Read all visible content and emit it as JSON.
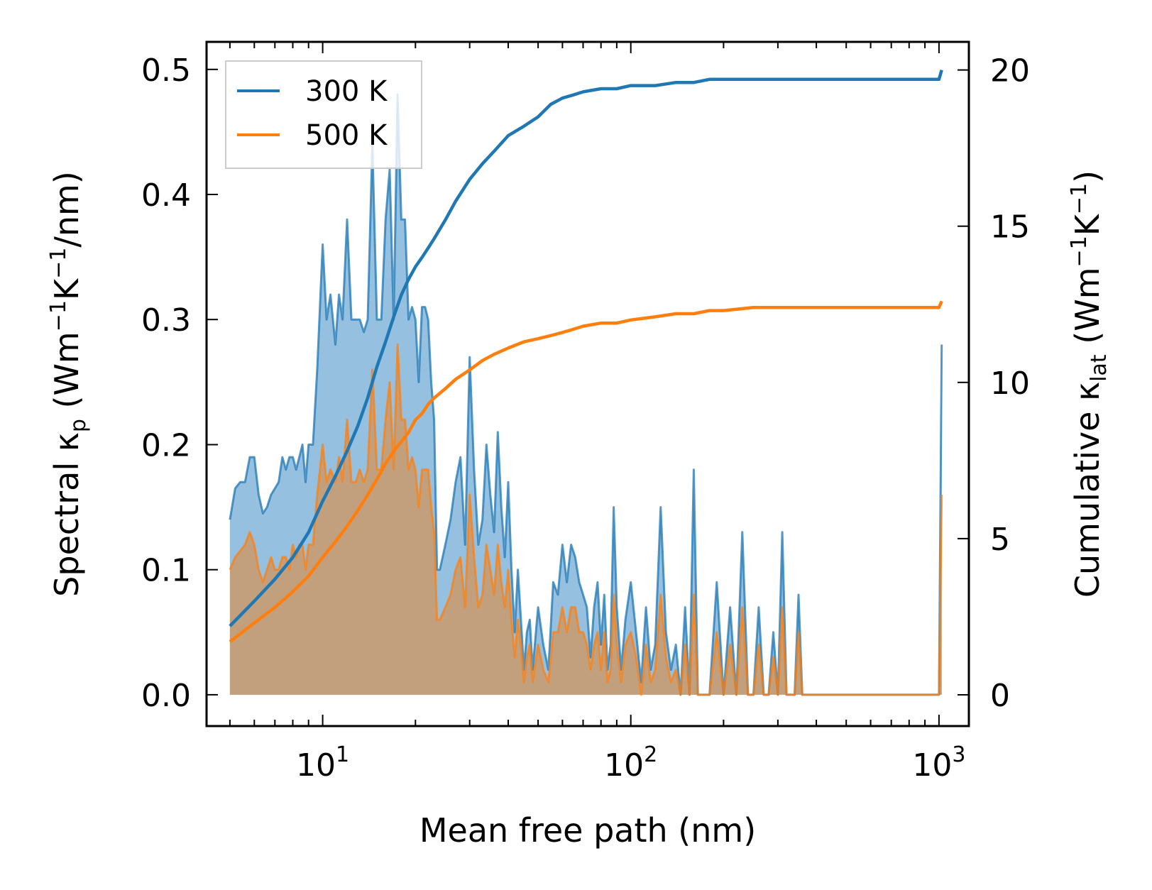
{
  "chart_data": {
    "type": "area",
    "x_scale": "log",
    "xlabel": "Mean free path (nm)",
    "ylabel_left": {
      "text": "Spectral κ",
      "sub": "p",
      "units_a": " (Wm",
      "sup1": "−1",
      "units_b": "K",
      "sup2": "−1",
      "units_c": "/nm)"
    },
    "ylabel_right": {
      "text": "Cumulative κ",
      "sub": "lat",
      "units_a": " (Wm",
      "sup1": "−1",
      "units_b": "K",
      "sup2": "−1",
      "units_c": ")"
    },
    "xlim": [
      4.2,
      1250
    ],
    "ylim_left": [
      -0.025,
      0.522
    ],
    "ylim_right": [
      -1.0,
      20.9
    ],
    "x_ticks": [
      {
        "value": 10,
        "base": "10",
        "exp": "1"
      },
      {
        "value": 100,
        "base": "10",
        "exp": "2"
      },
      {
        "value": 1000,
        "base": "10",
        "exp": "3"
      }
    ],
    "y_left_ticks": [
      {
        "value": 0.0,
        "label": "0.0"
      },
      {
        "value": 0.1,
        "label": "0.1"
      },
      {
        "value": 0.2,
        "label": "0.2"
      },
      {
        "value": 0.3,
        "label": "0.3"
      },
      {
        "value": 0.4,
        "label": "0.4"
      },
      {
        "value": 0.5,
        "label": "0.5"
      }
    ],
    "y_right_ticks": [
      {
        "value": 0,
        "label": "0"
      },
      {
        "value": 5,
        "label": "5"
      },
      {
        "value": 10,
        "label": "10"
      },
      {
        "value": 15,
        "label": "15"
      },
      {
        "value": 20,
        "label": "20"
      }
    ],
    "legend": {
      "position": "top-left",
      "entries": [
        {
          "name": "300 K",
          "color": "#1f77b4"
        },
        {
          "name": "500 K",
          "color": "#ff7f0e"
        }
      ]
    },
    "spectral": [
      {
        "name": "300 K",
        "color": "#1f77b4",
        "fill": "#8ab9dc",
        "x": [
          5.0,
          5.2,
          5.4,
          5.6,
          5.8,
          6.0,
          6.2,
          6.4,
          6.6,
          6.8,
          7.0,
          7.2,
          7.4,
          7.6,
          7.8,
          8.0,
          8.2,
          8.4,
          8.6,
          8.8,
          9.0,
          9.3,
          9.6,
          10.0,
          10.3,
          10.6,
          11.0,
          11.3,
          11.6,
          12.0,
          12.4,
          12.8,
          13.2,
          13.6,
          14.0,
          14.5,
          15.0,
          15.5,
          16.0,
          16.5,
          17.0,
          17.5,
          18.0,
          18.5,
          19.0,
          19.5,
          20.0,
          20.5,
          21.0,
          21.5,
          22.0,
          22.5,
          23.0,
          23.5,
          24.0,
          25.0,
          26.0,
          27.0,
          28.0,
          29.0,
          30.0,
          31.0,
          32.0,
          33.0,
          34.0,
          35.0,
          36.0,
          37.0,
          38.0,
          39.0,
          40.0,
          41.0,
          42.0,
          43.0,
          44.0,
          45.0,
          46.0,
          47.0,
          48.0,
          50.0,
          52.0,
          54.0,
          56.0,
          58.0,
          60.0,
          62.0,
          64.0,
          66.0,
          68.0,
          70.0,
          72.0,
          74.0,
          76.0,
          78.0,
          80.0,
          82.0,
          84.0,
          86.0,
          88.0,
          90.0,
          93.0,
          96.0,
          100.0,
          104.0,
          108.0,
          112.0,
          116.0,
          120.0,
          125.0,
          130.0,
          135.0,
          140.0,
          145.0,
          150.0,
          155.0,
          160.0,
          165.0,
          170.0,
          180.0,
          190.0,
          200.0,
          210.0,
          220.0,
          230.0,
          240.0,
          250.0,
          260.0,
          270.0,
          280.0,
          290.0,
          300.0,
          310.0,
          320.0,
          330.0,
          340.0,
          350.0,
          360.0,
          380.0,
          400.0,
          950.0,
          1000.0,
          1020.0
        ],
        "y": [
          0.14,
          0.165,
          0.17,
          0.17,
          0.19,
          0.19,
          0.16,
          0.145,
          0.15,
          0.16,
          0.165,
          0.17,
          0.19,
          0.18,
          0.19,
          0.19,
          0.18,
          0.19,
          0.2,
          0.17,
          0.2,
          0.2,
          0.26,
          0.36,
          0.3,
          0.32,
          0.28,
          0.32,
          0.3,
          0.38,
          0.3,
          0.3,
          0.3,
          0.29,
          0.3,
          0.44,
          0.3,
          0.3,
          0.38,
          0.42,
          0.3,
          0.48,
          0.38,
          0.38,
          0.3,
          0.31,
          0.3,
          0.25,
          0.31,
          0.31,
          0.3,
          0.25,
          0.22,
          0.1,
          0.1,
          0.12,
          0.14,
          0.17,
          0.19,
          0.12,
          0.27,
          0.18,
          0.12,
          0.14,
          0.2,
          0.16,
          0.13,
          0.21,
          0.15,
          0.11,
          0.17,
          0.1,
          0.05,
          0.1,
          0.06,
          0.02,
          0.05,
          0.06,
          0.02,
          0.07,
          0.04,
          0.02,
          0.09,
          0.08,
          0.12,
          0.09,
          0.12,
          0.11,
          0.09,
          0.08,
          0.07,
          0.03,
          0.07,
          0.09,
          0.04,
          0.08,
          0.02,
          0.04,
          0.15,
          0.07,
          0.02,
          0.06,
          0.09,
          0.05,
          0.01,
          0.07,
          0.02,
          0.04,
          0.15,
          0.05,
          0.02,
          0.04,
          0.0,
          0.07,
          0.0,
          0.18,
          0.0,
          0.0,
          0.0,
          0.09,
          0.0,
          0.07,
          0.0,
          0.13,
          0.0,
          0.0,
          0.07,
          0.0,
          0.0,
          0.05,
          0.0,
          0.13,
          0.0,
          0.0,
          0.0,
          0.08,
          0.0,
          0.0,
          0.0,
          0.0,
          0.0,
          0.28
        ]
      },
      {
        "name": "500 K",
        "color": "#ff7f0e",
        "fill": "#c79c73",
        "x": [
          5.0,
          5.2,
          5.4,
          5.6,
          5.8,
          6.0,
          6.2,
          6.4,
          6.6,
          6.8,
          7.0,
          7.2,
          7.4,
          7.6,
          7.8,
          8.0,
          8.2,
          8.4,
          8.6,
          8.8,
          9.0,
          9.3,
          9.6,
          10.0,
          10.3,
          10.6,
          11.0,
          11.3,
          11.6,
          12.0,
          12.4,
          12.8,
          13.2,
          13.6,
          14.0,
          14.5,
          15.0,
          15.5,
          16.0,
          16.5,
          17.0,
          17.5,
          18.0,
          18.5,
          19.0,
          19.5,
          20.0,
          20.5,
          21.0,
          21.5,
          22.0,
          22.5,
          23.0,
          23.5,
          24.0,
          25.0,
          26.0,
          27.0,
          28.0,
          29.0,
          30.0,
          31.0,
          32.0,
          33.0,
          34.0,
          35.0,
          36.0,
          37.0,
          38.0,
          39.0,
          40.0,
          41.0,
          42.0,
          43.0,
          44.0,
          45.0,
          46.0,
          47.0,
          48.0,
          50.0,
          52.0,
          54.0,
          56.0,
          58.0,
          60.0,
          62.0,
          64.0,
          66.0,
          68.0,
          70.0,
          72.0,
          74.0,
          76.0,
          78.0,
          80.0,
          82.0,
          84.0,
          86.0,
          88.0,
          90.0,
          93.0,
          96.0,
          100.0,
          104.0,
          108.0,
          112.0,
          116.0,
          120.0,
          125.0,
          130.0,
          135.0,
          140.0,
          145.0,
          150.0,
          155.0,
          160.0,
          165.0,
          170.0,
          180.0,
          190.0,
          200.0,
          210.0,
          220.0,
          230.0,
          240.0,
          250.0,
          260.0,
          270.0,
          280.0,
          290.0,
          300.0,
          310.0,
          320.0,
          330.0,
          340.0,
          350.0,
          360.0,
          380.0,
          400.0,
          950.0,
          1000.0,
          1020.0
        ],
        "y": [
          0.1,
          0.11,
          0.115,
          0.12,
          0.13,
          0.12,
          0.1,
          0.09,
          0.1,
          0.11,
          0.1,
          0.1,
          0.11,
          0.11,
          0.1,
          0.12,
          0.11,
          0.12,
          0.12,
          0.1,
          0.12,
          0.12,
          0.16,
          0.2,
          0.17,
          0.18,
          0.17,
          0.19,
          0.17,
          0.22,
          0.17,
          0.17,
          0.18,
          0.17,
          0.18,
          0.26,
          0.18,
          0.18,
          0.22,
          0.25,
          0.18,
          0.28,
          0.22,
          0.22,
          0.18,
          0.19,
          0.18,
          0.15,
          0.18,
          0.18,
          0.18,
          0.15,
          0.13,
          0.06,
          0.06,
          0.07,
          0.08,
          0.1,
          0.11,
          0.07,
          0.16,
          0.11,
          0.07,
          0.08,
          0.12,
          0.1,
          0.08,
          0.12,
          0.09,
          0.07,
          0.1,
          0.06,
          0.03,
          0.06,
          0.04,
          0.01,
          0.03,
          0.04,
          0.01,
          0.04,
          0.02,
          0.01,
          0.05,
          0.05,
          0.07,
          0.05,
          0.07,
          0.07,
          0.05,
          0.05,
          0.04,
          0.02,
          0.04,
          0.05,
          0.02,
          0.05,
          0.01,
          0.02,
          0.08,
          0.04,
          0.01,
          0.04,
          0.05,
          0.03,
          0.0,
          0.04,
          0.01,
          0.02,
          0.08,
          0.03,
          0.01,
          0.02,
          0.0,
          0.04,
          0.0,
          0.08,
          0.0,
          0.0,
          0.0,
          0.05,
          0.0,
          0.04,
          0.0,
          0.07,
          0.0,
          0.0,
          0.04,
          0.0,
          0.0,
          0.03,
          0.0,
          0.07,
          0.0,
          0.0,
          0.0,
          0.05,
          0.0,
          0.0,
          0.0,
          0.0,
          0.0,
          0.16
        ]
      }
    ],
    "cumulative": [
      {
        "name": "300 K",
        "color": "#1f77b4",
        "x": [
          5.0,
          6.0,
          7.0,
          8.0,
          9.0,
          10.0,
          11.0,
          12.0,
          13.0,
          14.0,
          15.0,
          16.0,
          17.0,
          18.0,
          19.0,
          20.0,
          21.0,
          22.0,
          23.0,
          25.0,
          27.0,
          30.0,
          33.0,
          36.0,
          40.0,
          45.0,
          50.0,
          55.0,
          60.0,
          65.0,
          70.0,
          80.0,
          90.0,
          100.0,
          120.0,
          140.0,
          160.0,
          180.0,
          200.0,
          250.0,
          300.0,
          350.0,
          400.0,
          950.0,
          1000.0,
          1020.0
        ],
        "y": [
          2.2,
          3.0,
          3.7,
          4.4,
          5.2,
          6.2,
          7.0,
          7.8,
          8.6,
          9.5,
          10.5,
          11.3,
          12.1,
          12.8,
          13.3,
          13.7,
          14.0,
          14.3,
          14.6,
          15.2,
          15.8,
          16.5,
          17.0,
          17.4,
          17.9,
          18.2,
          18.5,
          18.9,
          19.1,
          19.2,
          19.3,
          19.4,
          19.4,
          19.5,
          19.5,
          19.6,
          19.6,
          19.7,
          19.7,
          19.7,
          19.7,
          19.7,
          19.7,
          19.7,
          19.7,
          20.0
        ]
      },
      {
        "name": "500 K",
        "color": "#ff7f0e",
        "x": [
          5.0,
          6.0,
          7.0,
          8.0,
          9.0,
          10.0,
          11.0,
          12.0,
          13.0,
          14.0,
          15.0,
          16.0,
          17.0,
          18.0,
          19.0,
          20.0,
          21.0,
          22.0,
          23.0,
          25.0,
          27.0,
          30.0,
          33.0,
          36.0,
          40.0,
          45.0,
          50.0,
          55.0,
          60.0,
          65.0,
          70.0,
          80.0,
          90.0,
          100.0,
          120.0,
          140.0,
          160.0,
          180.0,
          200.0,
          250.0,
          300.0,
          350.0,
          400.0,
          950.0,
          1000.0,
          1020.0
        ],
        "y": [
          1.7,
          2.3,
          2.8,
          3.3,
          3.8,
          4.4,
          4.9,
          5.4,
          5.9,
          6.4,
          6.9,
          7.4,
          7.8,
          8.1,
          8.4,
          8.8,
          9.0,
          9.3,
          9.5,
          9.8,
          10.1,
          10.4,
          10.7,
          10.9,
          11.1,
          11.3,
          11.4,
          11.5,
          11.6,
          11.7,
          11.8,
          11.9,
          11.9,
          12.0,
          12.1,
          12.2,
          12.2,
          12.3,
          12.3,
          12.4,
          12.4,
          12.4,
          12.4,
          12.4,
          12.4,
          12.6
        ]
      }
    ]
  }
}
